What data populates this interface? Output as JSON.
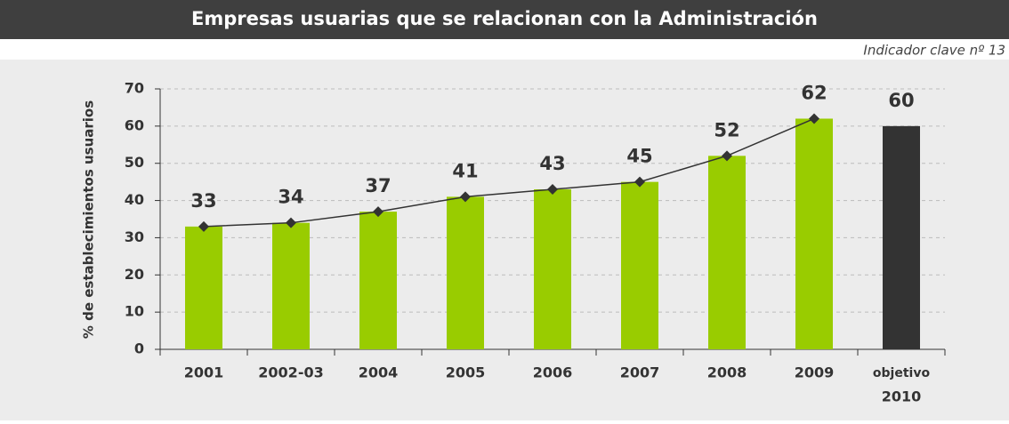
{
  "header": {
    "title": "Empresas usuarias que se relacionan con la Administración",
    "subtitle": "Indicador clave nº 13"
  },
  "chart_data": {
    "type": "bar_line",
    "ylabel": "% de establecimientos usuarios",
    "categories": [
      "2001",
      "2002-03",
      "2004",
      "2005",
      "2006",
      "2007",
      "2008",
      "2009",
      [
        "objetivo",
        "2010"
      ]
    ],
    "values": [
      33,
      34,
      37,
      41,
      43,
      45,
      52,
      62,
      60
    ],
    "colors": [
      "#99cc00",
      "#99cc00",
      "#99cc00",
      "#99cc00",
      "#99cc00",
      "#99cc00",
      "#99cc00",
      "#99cc00",
      "#333333"
    ],
    "line_values": [
      33,
      34,
      37,
      41,
      43,
      45,
      52,
      62,
      null
    ],
    "line_color": "#333333",
    "ylim": [
      0,
      70
    ],
    "yticks": [
      0,
      10,
      20,
      30,
      40,
      50,
      60,
      70
    ],
    "grid": true
  }
}
